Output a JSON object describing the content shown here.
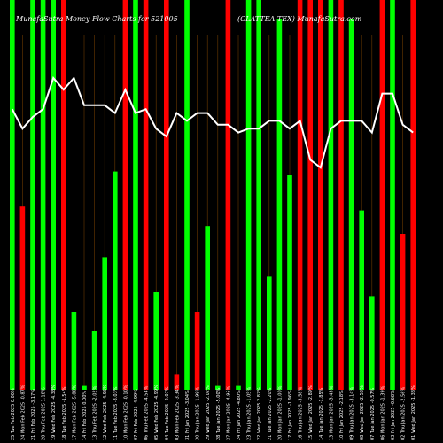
{
  "chart_data": {
    "type": "bar",
    "title_left": "MunafaSutra Money Flow  Charts for 521005",
    "title_right": "(CLATTEA TEX) MunafaSutra.com",
    "categories": [
      "25 Tue Feb 2025 0.00%",
      "24 Mon Feb 2025 -0.87%",
      "21 Fri Feb 2025 -3.17%",
      "20 Thu Feb 2025 1.18%",
      "19 Wed Feb 2025 -4.38%",
      "18 Tue Feb 2025 -1.54%",
      "17 Mon Feb 2025 -5.80%",
      "14 Fri Feb 2025 0.00%",
      "13 Thu Feb 2025 -2.02%",
      "12 Wed Feb 2025 -4.96%",
      "11 Tue Feb 2025 -3.03%",
      "10 Mon Feb 2025 -0.10%",
      "07 Fri Feb 2025 -4.99%",
      "06 Thu Feb 2025 -4.54%",
      "05 Wed Feb 2025 -4.99%",
      "04 Tue Feb 2025 -2.07%",
      "03 Mon Feb 2025 -3.34%",
      "31 Fri Jan 2025 -3.04%",
      "30 Thu Jan 2025 -1.99%",
      "29 Wed Jan 2025 -2.02%",
      "28 Tue Jan 2025 -5.00%",
      "27 Mon Jan 2025 -4.95%",
      "24 Fri Jan 2025 -4.80%",
      "23 Thu Jan 2025 -1.05%",
      "22 Wed Jan 2025 2.87%",
      "21 Tue Jan 2025 -2.20%",
      "20 Mon Jan 2025 -1.00%",
      "17 Fri Jan 2025 -1.96%",
      "16 Thu Jan 2025 -3.58%",
      "15 Wed Jan 2025 -2.89%",
      "14 Tue Jan 2025 -1.85%",
      "13 Mon Jan 2025 -3.43%",
      "10 Fri Jan 2025 -2.18%",
      "09 Thu Jan 2025 -3.14%",
      "08 Wed Jan 2025 -2.53%",
      "07 Tue Jan 2025 -0.57%",
      "06 Mon Jan 2025 -1.39%",
      "03 Fri Jan 2025 -0.68%",
      "02 Thu Jan 2025 -2.56%",
      "01 Wed Jan 2025 -1.38%"
    ],
    "series": [
      {
        "values": [
          100,
          47,
          100,
          100,
          100,
          100,
          20,
          1,
          15,
          34,
          56,
          100,
          100,
          100,
          25,
          100,
          4,
          100,
          20,
          42,
          1,
          100,
          1,
          100,
          100,
          29,
          95,
          55,
          100,
          100,
          100,
          100,
          100,
          95,
          46,
          24,
          100,
          100,
          40,
          100
        ],
        "colors": [
          "#00ff00",
          "#ff0000",
          "#00ff00",
          "#00ff00",
          "#00ff00",
          "#ff0000",
          "#00ff00",
          "#00ff00",
          "#00ff00",
          "#00ff00",
          "#00ff00",
          "#ff0000",
          "#00ff00",
          "#ff0000",
          "#00ff00",
          "#ff0000",
          "#ff0000",
          "#00ff00",
          "#ff0000",
          "#00ff00",
          "#00ff00",
          "#ff0000",
          "#00ff00",
          "#00ff00",
          "#00ff00",
          "#00ff00",
          "#00ff00",
          "#00ff00",
          "#ff0000",
          "#ff0000",
          "#ff0000",
          "#00ff00",
          "#ff0000",
          "#00ff00",
          "#00ff00",
          "#00ff00",
          "#ff0000",
          "#00ff00",
          "#ff0000",
          "#ff0000"
        ]
      },
      {
        "type": "line",
        "color": "#ffffff",
        "values": [
          72,
          67,
          70,
          72,
          80,
          77,
          80,
          73,
          73,
          73,
          71,
          77,
          71,
          72,
          67,
          65,
          71,
          69,
          71,
          71,
          68,
          68,
          66,
          67,
          67,
          69,
          69,
          67,
          69,
          59,
          57,
          67,
          69,
          69,
          69,
          66,
          76,
          76,
          68,
          66
        ]
      }
    ],
    "ylim": [
      0,
      100
    ],
    "grid": true
  }
}
